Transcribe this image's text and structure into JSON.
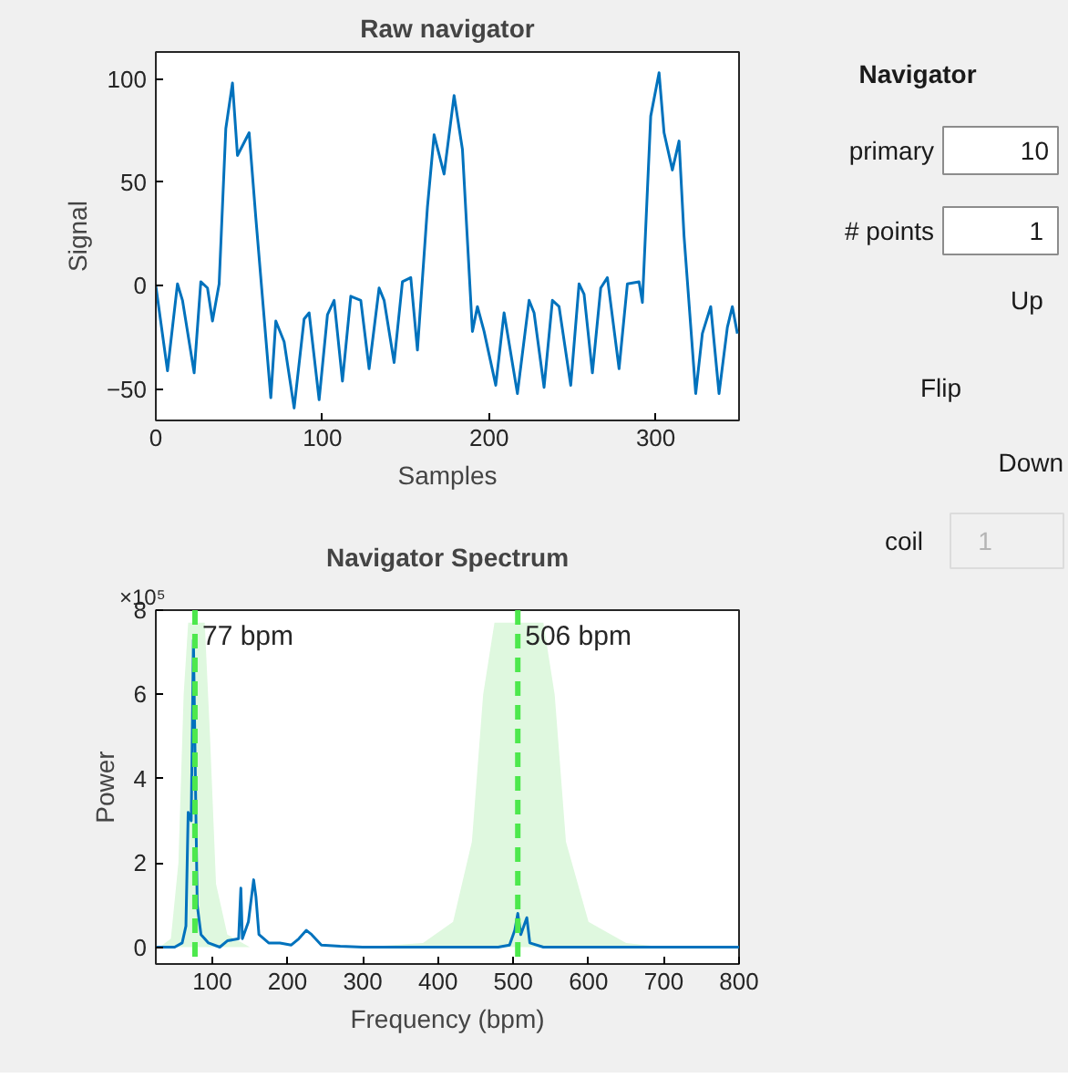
{
  "chart_data": [
    {
      "type": "line",
      "title": "Raw navigator",
      "xlabel": "Samples",
      "ylabel": "Signal",
      "xlim": [
        0,
        350
      ],
      "ylim": [
        -65,
        113
      ],
      "xticks": [
        0,
        100,
        200,
        300
      ],
      "yticks": [
        -50,
        0,
        50,
        100
      ],
      "grid": false,
      "series": [
        {
          "color": "#0072bd",
          "x": [
            0,
            7,
            13,
            16,
            23,
            27,
            31,
            34,
            38,
            42,
            46,
            49,
            56,
            60,
            69,
            72,
            77,
            83,
            89,
            92,
            98,
            103,
            107,
            112,
            117,
            123,
            128,
            134,
            137,
            143,
            148,
            153,
            157,
            163,
            167,
            173,
            179,
            184,
            190,
            193,
            197,
            204,
            209,
            217,
            224,
            227,
            233,
            238,
            242,
            249,
            254,
            257,
            262,
            267,
            271,
            278,
            283,
            290,
            292,
            297,
            302,
            305,
            310,
            314,
            317,
            324,
            328,
            333,
            338,
            343,
            346,
            349
          ],
          "values": [
            0,
            -41,
            1,
            -7,
            -42,
            2,
            -1,
            -17,
            1,
            76,
            98,
            63,
            74,
            33,
            -54,
            -17,
            -27,
            -59,
            -16,
            -13,
            -55,
            -14,
            -7,
            -46,
            -5,
            -7,
            -40,
            -1,
            -7,
            -37,
            2,
            4,
            -31,
            38,
            73,
            54,
            92,
            66,
            -22,
            -10,
            -22,
            -48,
            -13,
            -52,
            -7,
            -13,
            -49,
            -7,
            -10,
            -48,
            1,
            -4,
            -42,
            -1,
            4,
            -40,
            1,
            2,
            -8,
            82,
            103,
            74,
            56,
            70,
            24,
            -52,
            -23,
            -10,
            -52,
            -20,
            -10,
            -23
          ]
        }
      ]
    },
    {
      "type": "line",
      "title": "Navigator Spectrum",
      "xlabel": "Frequency (bpm)",
      "ylabel": "Power",
      "xlim": [
        25,
        800
      ],
      "ylim": [
        -0.4,
        8
      ],
      "xticks": [
        100,
        200,
        300,
        400,
        500,
        600,
        700,
        800
      ],
      "yticks": [
        0,
        2,
        4,
        6,
        8
      ],
      "grid": false,
      "annotations": [
        "×10⁵"
      ],
      "series": [
        {
          "type": "area",
          "color": "#dff8df",
          "x": [
            30,
            45,
            55,
            62,
            68,
            90,
            97,
            105,
            120,
            150,
            300,
            380,
            420,
            445,
            460,
            475,
            540,
            555,
            570,
            600,
            650,
            700,
            800
          ],
          "values": [
            0,
            0.2,
            2,
            6,
            7.7,
            7.7,
            5,
            1.5,
            0.3,
            0,
            0,
            0.1,
            0.6,
            2.5,
            6,
            7.7,
            7.7,
            6,
            2.5,
            0.6,
            0.1,
            0,
            0
          ]
        },
        {
          "type": "line",
          "color": "#0072bd",
          "x": [
            25,
            50,
            60,
            65,
            68,
            72,
            75,
            78,
            80,
            85,
            95,
            110,
            120,
            135,
            138,
            140,
            148,
            155,
            158,
            162,
            175,
            190,
            205,
            215,
            225,
            232,
            245,
            270,
            300,
            400,
            480,
            495,
            502,
            506,
            510,
            518,
            522,
            540,
            800
          ],
          "values": [
            0,
            0,
            0.1,
            0.5,
            3.2,
            3.0,
            7.3,
            3.5,
            1.0,
            0.3,
            0.1,
            0,
            0.15,
            0.2,
            1.4,
            0.2,
            0.6,
            1.6,
            1.2,
            0.3,
            0.1,
            0.1,
            0.05,
            0.2,
            0.4,
            0.3,
            0.05,
            0.02,
            0,
            0,
            0,
            0.05,
            0.4,
            0.8,
            0.3,
            0.7,
            0.1,
            0,
            0
          ]
        }
      ],
      "ref_lines": [
        {
          "axis": "x",
          "value": 77,
          "label": "77 bpm",
          "color": "#4de84d",
          "line_style": "dashed"
        },
        {
          "axis": "x",
          "value": 506,
          "label": "506 bpm",
          "color": "#4de84d",
          "line_style": "dashed"
        }
      ]
    },
    {
      "type": "other",
      "title": "Navigator",
      "annotations": [
        "primary",
        "10",
        "# points",
        "1",
        "Up",
        "Flip",
        "Down",
        "coil",
        "1"
      ]
    }
  ]
}
